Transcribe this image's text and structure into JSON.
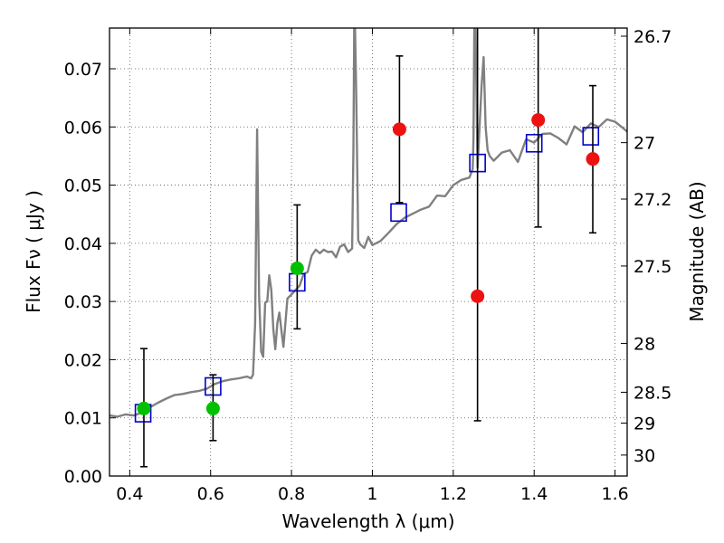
{
  "chart_data": {
    "type": "scatter",
    "title": "",
    "xlabel": "Wavelength  λ (μm)",
    "ylabel": "Flux  Fν  ( μJy )",
    "y2label": "Magnitude (AB)",
    "xlim": [
      0.35,
      1.63
    ],
    "ylim": [
      0.0,
      0.077
    ],
    "grid": true,
    "x_ticks": [
      0.4,
      0.6,
      0.8,
      1.0,
      1.2,
      1.4,
      1.6
    ],
    "x_tick_labels": [
      "0.4",
      "0.6",
      "0.8",
      "1",
      "1.2",
      "1.4",
      "1.6"
    ],
    "y_ticks": [
      0.0,
      0.01,
      0.02,
      0.03,
      0.04,
      0.05,
      0.06,
      0.07
    ],
    "y_tick_labels": [
      "0.00",
      "0.01",
      "0.02",
      "0.03",
      "0.04",
      "0.05",
      "0.06",
      "0.07"
    ],
    "y2_ticks": [
      {
        "label": "26.7",
        "flux": 0.0756
      },
      {
        "label": "27",
        "flux": 0.0573
      },
      {
        "label": "27.2",
        "flux": 0.0476
      },
      {
        "label": "27.5",
        "flux": 0.0361
      },
      {
        "label": "28",
        "flux": 0.0228
      },
      {
        "label": "28.5",
        "flux": 0.0144
      },
      {
        "label": "29",
        "flux": 0.0091
      },
      {
        "label": "30",
        "flux": 0.0036
      }
    ],
    "colors": {
      "spectrum": "#808080",
      "model_box": "#0000cc",
      "detection": "#00c000",
      "upper": "#ee1111",
      "errorbar": "#000000",
      "grid": "#555555"
    },
    "series": [
      {
        "name": "model spectrum",
        "style": "line",
        "x": [
          0.35,
          0.37,
          0.39,
          0.41,
          0.43,
          0.45,
          0.47,
          0.49,
          0.51,
          0.53,
          0.55,
          0.57,
          0.59,
          0.61,
          0.63,
          0.65,
          0.67,
          0.69,
          0.7,
          0.705,
          0.71,
          0.712,
          0.715,
          0.72,
          0.725,
          0.73,
          0.735,
          0.74,
          0.745,
          0.75,
          0.755,
          0.76,
          0.765,
          0.77,
          0.775,
          0.78,
          0.79,
          0.8,
          0.81,
          0.82,
          0.83,
          0.84,
          0.85,
          0.86,
          0.87,
          0.88,
          0.89,
          0.9,
          0.91,
          0.92,
          0.93,
          0.94,
          0.95,
          0.953,
          0.955,
          0.957,
          0.96,
          0.965,
          0.97,
          0.98,
          0.99,
          1.0,
          1.02,
          1.04,
          1.06,
          1.08,
          1.1,
          1.12,
          1.14,
          1.16,
          1.18,
          1.2,
          1.22,
          1.24,
          1.248,
          1.25,
          1.252,
          1.255,
          1.26,
          1.265,
          1.27,
          1.275,
          1.28,
          1.285,
          1.29,
          1.3,
          1.32,
          1.34,
          1.36,
          1.38,
          1.4,
          1.42,
          1.44,
          1.46,
          1.48,
          1.5,
          1.52,
          1.54,
          1.56,
          1.58,
          1.6,
          1.62,
          1.63
        ],
        "y": [
          0.0104,
          0.0102,
          0.0106,
          0.0104,
          0.0109,
          0.0118,
          0.0126,
          0.0133,
          0.0139,
          0.0141,
          0.0144,
          0.0146,
          0.015,
          0.0158,
          0.0163,
          0.0166,
          0.0168,
          0.0171,
          0.0168,
          0.0174,
          0.0262,
          0.04,
          0.0596,
          0.031,
          0.0214,
          0.0205,
          0.0298,
          0.03,
          0.0345,
          0.032,
          0.0253,
          0.0218,
          0.0263,
          0.0281,
          0.0251,
          0.0222,
          0.0305,
          0.0312,
          0.032,
          0.0327,
          0.0347,
          0.0351,
          0.0379,
          0.0389,
          0.0383,
          0.0389,
          0.0385,
          0.0386,
          0.0376,
          0.0394,
          0.0398,
          0.0385,
          0.0391,
          0.056,
          0.077,
          0.077,
          0.066,
          0.0405,
          0.0398,
          0.0392,
          0.0411,
          0.0397,
          0.0404,
          0.0418,
          0.0433,
          0.0444,
          0.0451,
          0.0458,
          0.0463,
          0.0482,
          0.0481,
          0.05,
          0.0509,
          0.0513,
          0.0528,
          0.058,
          0.077,
          0.077,
          0.053,
          0.06,
          0.067,
          0.072,
          0.06,
          0.056,
          0.055,
          0.0542,
          0.0556,
          0.056,
          0.054,
          0.0579,
          0.0573,
          0.0588,
          0.0589,
          0.0581,
          0.057,
          0.0601,
          0.0591,
          0.0606,
          0.06,
          0.0613,
          0.0609,
          0.0598,
          0.0592
        ]
      },
      {
        "name": "model photometry",
        "style": "open-square",
        "x": [
          0.433,
          0.606,
          0.814,
          1.065,
          1.26,
          1.4,
          1.54
        ],
        "y": [
          0.0108,
          0.0154,
          0.0333,
          0.0453,
          0.0538,
          0.0572,
          0.0584
        ]
      },
      {
        "name": "detections",
        "style": "filled-circle",
        "x": [
          0.435,
          0.606,
          0.814
        ],
        "y": [
          0.0116,
          0.0116,
          0.0357
        ],
        "yerr_low": [
          0.0016,
          0.0061,
          0.0253
        ],
        "yerr_high": [
          0.0219,
          0.0174,
          0.0466
        ]
      },
      {
        "name": "non-detections",
        "style": "filled-circle",
        "x": [
          1.067,
          1.26,
          1.41,
          1.545
        ],
        "y": [
          0.0596,
          0.0309,
          0.0612,
          0.0545
        ],
        "yerr_low": [
          0.047,
          0.0095,
          0.0428,
          0.0418
        ],
        "yerr_high": [
          0.0722,
          0.08,
          0.08,
          0.0671
        ]
      }
    ]
  }
}
